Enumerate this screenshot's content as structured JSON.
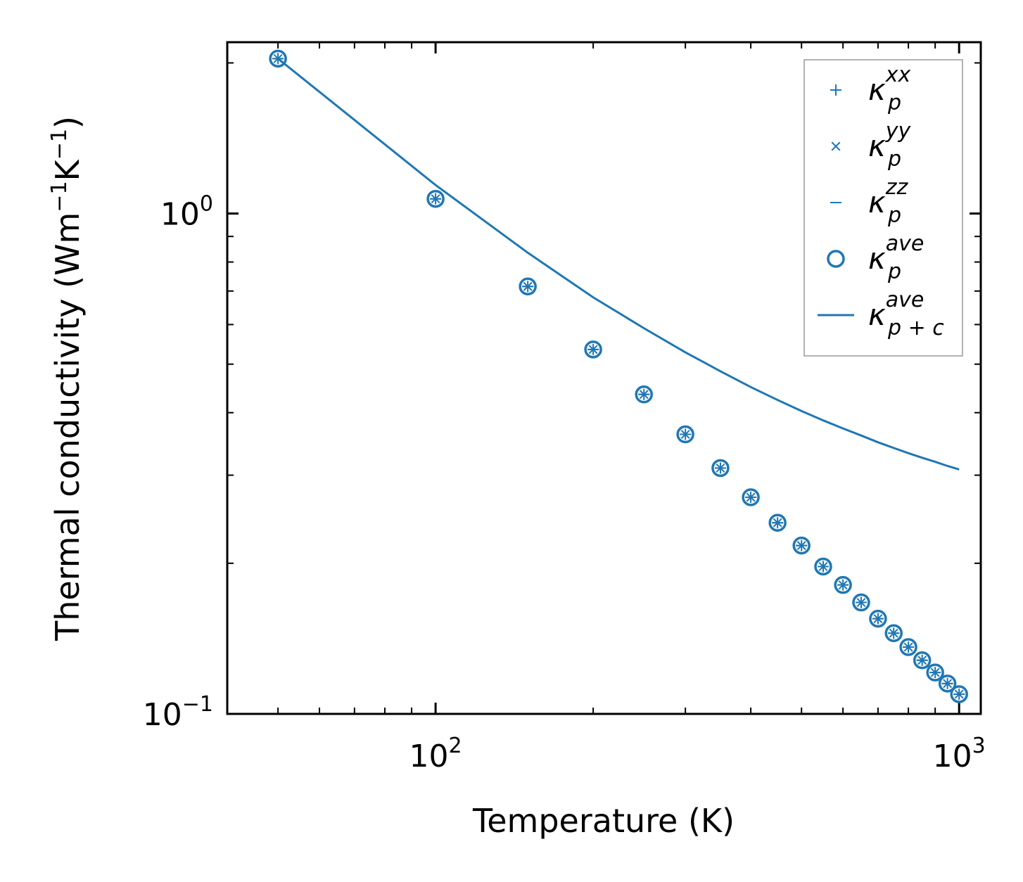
{
  "chart_data": {
    "type": "scatter",
    "xscale": "log",
    "yscale": "log",
    "xlabel": "Temperature (K)",
    "ylabel": "Thermal conductivity (Wm",
    "ylabel_parts": [
      "Thermal conductivity (Wm",
      "−1",
      "K",
      "−1",
      ")"
    ],
    "xlim": [
      40,
      1100
    ],
    "ylim": [
      0.1,
      2.2
    ],
    "x_ticks": [
      {
        "value": 100,
        "base": "10",
        "exp": "2"
      },
      {
        "value": 1000,
        "base": "10",
        "exp": "3"
      }
    ],
    "y_ticks": [
      {
        "value": 0.1,
        "base": "10",
        "exp": "−1"
      },
      {
        "value": 1,
        "base": "10",
        "exp": "0"
      }
    ],
    "x": [
      50,
      100,
      150,
      200,
      250,
      300,
      350,
      400,
      450,
      500,
      550,
      600,
      650,
      700,
      750,
      800,
      850,
      900,
      950,
      1000
    ],
    "series": [
      {
        "name": "κ_p^xx",
        "base": "κ",
        "sub": "p",
        "sup": "xx",
        "marker": "plus",
        "values": [
          2.04,
          1.07,
          0.715,
          0.535,
          0.435,
          0.362,
          0.31,
          0.271,
          0.241,
          0.217,
          0.197,
          0.181,
          0.167,
          0.155,
          0.145,
          0.136,
          0.128,
          0.121,
          0.115,
          0.1095
        ]
      },
      {
        "name": "κ_p^yy",
        "base": "κ",
        "sub": "p",
        "sup": "yy",
        "marker": "x",
        "values": [
          2.04,
          1.07,
          0.715,
          0.535,
          0.435,
          0.362,
          0.31,
          0.271,
          0.241,
          0.217,
          0.197,
          0.181,
          0.167,
          0.155,
          0.145,
          0.136,
          0.128,
          0.121,
          0.115,
          0.1095
        ]
      },
      {
        "name": "κ_p^zz",
        "base": "κ",
        "sub": "p",
        "sup": "zz",
        "marker": "hline",
        "values": [
          2.04,
          1.07,
          0.715,
          0.535,
          0.435,
          0.362,
          0.31,
          0.271,
          0.241,
          0.217,
          0.197,
          0.181,
          0.167,
          0.155,
          0.145,
          0.136,
          0.128,
          0.121,
          0.115,
          0.1095
        ]
      },
      {
        "name": "κ_p^ave",
        "base": "κ",
        "sub": "p",
        "sup": "ave",
        "marker": "circle",
        "values": [
          2.04,
          1.07,
          0.715,
          0.535,
          0.435,
          0.362,
          0.31,
          0.271,
          0.241,
          0.217,
          0.197,
          0.181,
          0.167,
          0.155,
          0.145,
          0.136,
          0.128,
          0.121,
          0.115,
          0.1095
        ]
      },
      {
        "name": "κ_p+c^ave",
        "base": "κ",
        "sub": "p + c",
        "sup": "ave",
        "marker": "line",
        "values": [
          2.04,
          1.14,
          0.835,
          0.68,
          0.59,
          0.528,
          0.484,
          0.45,
          0.424,
          0.403,
          0.386,
          0.372,
          0.36,
          0.349,
          0.34,
          0.332,
          0.325,
          0.319,
          0.313,
          0.308
        ]
      }
    ],
    "legend": "top-right",
    "grid": false,
    "color": "#1f77b4"
  }
}
